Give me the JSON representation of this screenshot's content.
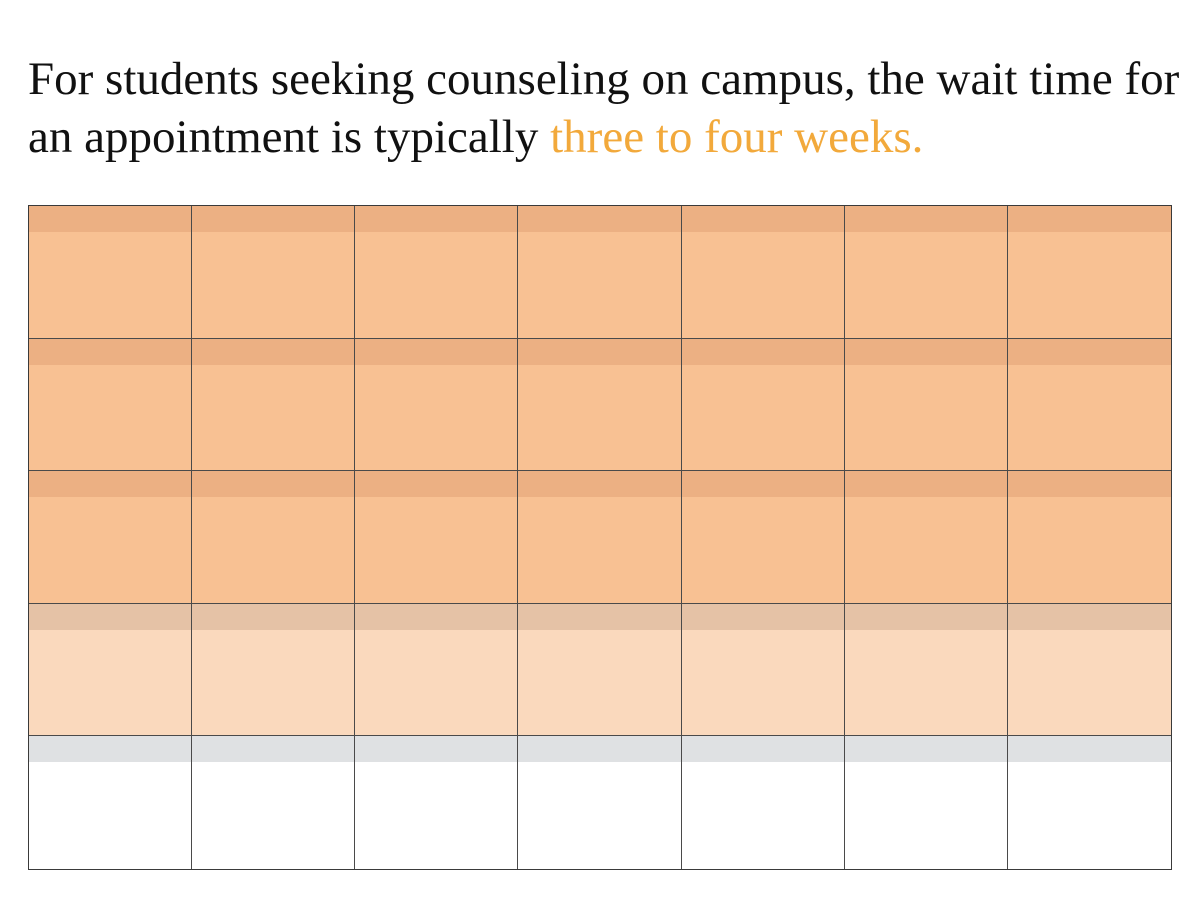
{
  "headline": {
    "text_before": "For students seeking counseling on campus, the wait time for an appointment is typically",
    "text_highlight": "three to four weeks."
  },
  "calendar": {
    "columns": 7,
    "weeks": [
      {
        "state": "waiting"
      },
      {
        "state": "waiting"
      },
      {
        "state": "waiting"
      },
      {
        "state": "partial"
      },
      {
        "state": "open"
      }
    ]
  },
  "colors": {
    "text": "#111111",
    "highlight": "#f2a93b",
    "waiting_fill": "#f8c193",
    "waiting_band": "#ecb083",
    "partial_fill": "#fad9bd",
    "partial_band": "#e5c2a6",
    "open_fill": "#ffffff",
    "open_band": "#dfe1e3",
    "grid_line": "#4a4a4a"
  }
}
